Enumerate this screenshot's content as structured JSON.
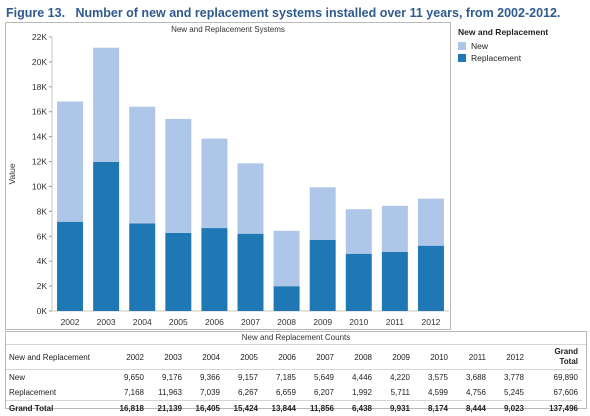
{
  "figure_title": "Figure 13.   Number of new and replacement systems installed over 11 years, from 2002-2012.",
  "chart_panel_title": "New and Replacement Systems",
  "table_panel_title": "New and Replacement Counts",
  "colors": {
    "new": "#aec7e8",
    "replacement": "#1f77b4"
  },
  "legend": {
    "title": "New and Replacement",
    "items": [
      "New",
      "Replacement"
    ]
  },
  "chart_data": {
    "type": "bar",
    "stacked": true,
    "categories": [
      "2002",
      "2003",
      "2004",
      "2005",
      "2006",
      "2007",
      "2008",
      "2009",
      "2010",
      "2011",
      "2012"
    ],
    "series": [
      {
        "name": "Replacement",
        "values": [
          7168,
          11963,
          7039,
          6267,
          6659,
          6207,
          1992,
          5711,
          4599,
          4756,
          5245
        ]
      },
      {
        "name": "New",
        "values": [
          9650,
          9176,
          9366,
          9157,
          7185,
          5649,
          4446,
          4220,
          3575,
          3688,
          3778
        ]
      }
    ],
    "ylabel": "Value",
    "ylim": [
      0,
      22000
    ],
    "yticks": [
      "0K",
      "2K",
      "4K",
      "6K",
      "8K",
      "10K",
      "12K",
      "14K",
      "16K",
      "18K",
      "20K",
      "22K"
    ],
    "grid": false,
    "legend_position": "right"
  },
  "table": {
    "corner_label": "New and Replacement",
    "years": [
      "2002",
      "2003",
      "2004",
      "2005",
      "2006",
      "2007",
      "2008",
      "2009",
      "2010",
      "2011",
      "2012"
    ],
    "grand_total_header": [
      "Grand",
      "Total"
    ],
    "rows": [
      {
        "label": "New",
        "values": [
          "9,650",
          "9,176",
          "9,366",
          "9,157",
          "7,185",
          "5,649",
          "4,446",
          "4,220",
          "3,575",
          "3,688",
          "3,778"
        ],
        "total": "69,890"
      },
      {
        "label": "Replacement",
        "values": [
          "7,168",
          "11,963",
          "7,039",
          "6,267",
          "6,659",
          "6,207",
          "1,992",
          "5,711",
          "4,599",
          "4,756",
          "5,245"
        ],
        "total": "67,606"
      },
      {
        "label": "Grand Total",
        "values": [
          "16,818",
          "21,139",
          "16,405",
          "15,424",
          "13,844",
          "11,856",
          "6,438",
          "9,931",
          "8,174",
          "8,444",
          "9,023"
        ],
        "total": "137,496"
      }
    ]
  }
}
